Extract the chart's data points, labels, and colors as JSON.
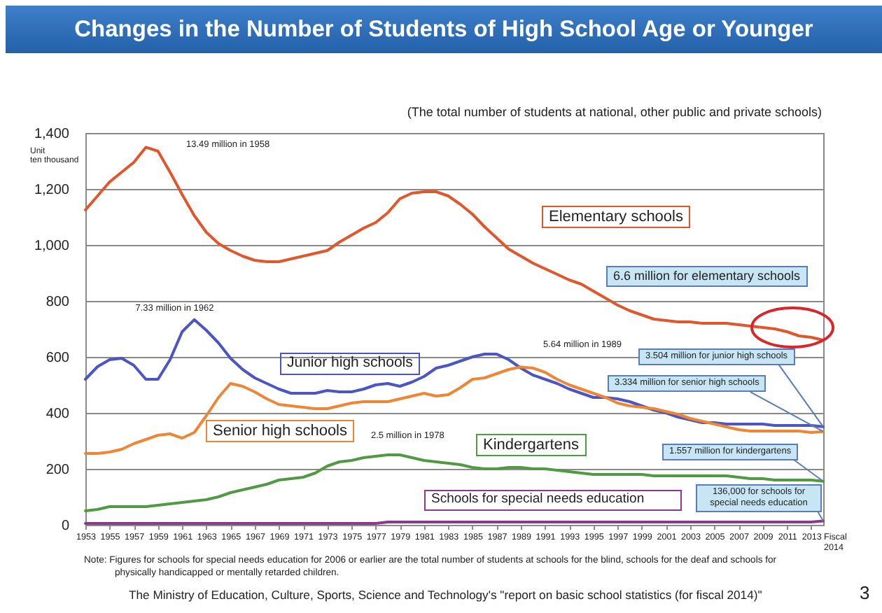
{
  "chart_data": {
    "type": "line",
    "title": "Changes in the Number of Students of High School Age or Younger",
    "subtitle": "(The total number of students at national, other public and private schools)",
    "xlabel": "Fiscal 2014",
    "ylabel": "Unit ten thousand",
    "x": [
      1953,
      1954,
      1955,
      1956,
      1957,
      1958,
      1959,
      1960,
      1961,
      1962,
      1963,
      1964,
      1965,
      1966,
      1967,
      1968,
      1969,
      1970,
      1971,
      1972,
      1973,
      1974,
      1975,
      1976,
      1977,
      1978,
      1979,
      1980,
      1981,
      1982,
      1983,
      1984,
      1985,
      1986,
      1987,
      1988,
      1989,
      1990,
      1991,
      1992,
      1993,
      1994,
      1995,
      1996,
      1997,
      1998,
      1999,
      2000,
      2001,
      2002,
      2003,
      2004,
      2005,
      2006,
      2007,
      2008,
      2009,
      2010,
      2011,
      2012,
      2013,
      2014
    ],
    "xlim": [
      1953,
      2014
    ],
    "xticks": [
      1953,
      1955,
      1957,
      1959,
      1961,
      1963,
      1965,
      1967,
      1969,
      1971,
      1973,
      1975,
      1977,
      1979,
      1981,
      1983,
      1985,
      1987,
      1989,
      1991,
      1993,
      1995,
      1997,
      1999,
      2001,
      2003,
      2005,
      2007,
      2009,
      2011,
      2013
    ],
    "ylim": [
      0,
      1400
    ],
    "yticks": [
      0,
      200,
      400,
      600,
      800,
      {
        "value": 1000,
        "label": "1,000"
      },
      {
        "value": 1200,
        "label": "1,200"
      },
      {
        "value": 1400,
        "label": "1,400"
      }
    ],
    "grid": "y",
    "series": [
      {
        "name": "Elementary schools",
        "color": "#e2562c",
        "values": [
          1125,
          1175,
          1225,
          1260,
          1295,
          1349,
          1335,
          1260,
          1180,
          1105,
          1045,
          1005,
          980,
          960,
          945,
          940,
          940,
          950,
          960,
          970,
          980,
          1010,
          1035,
          1060,
          1080,
          1115,
          1165,
          1185,
          1190,
          1190,
          1175,
          1145,
          1110,
          1065,
          1025,
          985,
          960,
          935,
          915,
          895,
          875,
          860,
          835,
          810,
          785,
          765,
          750,
          735,
          730,
          725,
          725,
          720,
          720,
          720,
          715,
          710,
          705,
          700,
          690,
          675,
          670,
          660
        ]
      },
      {
        "name": "Junior high schools",
        "color": "#4b55c4",
        "values": [
          520,
          565,
          590,
          595,
          570,
          520,
          520,
          590,
          690,
          733,
          695,
          650,
          595,
          555,
          525,
          505,
          485,
          470,
          470,
          470,
          480,
          475,
          475,
          485,
          500,
          505,
          495,
          510,
          530,
          560,
          570,
          585,
          600,
          610,
          610,
          590,
          560,
          535,
          520,
          505,
          485,
          470,
          455,
          455,
          450,
          440,
          425,
          410,
          400,
          385,
          375,
          365,
          365,
          360,
          360,
          360,
          360,
          355,
          355,
          355,
          355,
          350.4
        ]
      },
      {
        "name": "Senior high schools",
        "color": "#ef8635",
        "values": [
          255,
          255,
          260,
          270,
          290,
          305,
          320,
          325,
          310,
          330,
          390,
          455,
          505,
          495,
          475,
          450,
          430,
          425,
          420,
          415,
          415,
          425,
          435,
          440,
          440,
          440,
          450,
          460,
          470,
          460,
          465,
          490,
          520,
          525,
          540,
          555,
          564,
          560,
          545,
          520,
          500,
          485,
          470,
          455,
          435,
          425,
          420,
          415,
          405,
          395,
          380,
          370,
          360,
          350,
          340,
          335,
          335,
          335,
          335,
          335,
          330,
          333.4
        ]
      },
      {
        "name": "Kindergartens",
        "color": "#4f9a42",
        "values": [
          50,
          55,
          65,
          65,
          65,
          65,
          70,
          75,
          80,
          85,
          90,
          100,
          115,
          125,
          135,
          145,
          160,
          165,
          170,
          185,
          210,
          225,
          230,
          240,
          245,
          250,
          250,
          240,
          230,
          225,
          220,
          215,
          205,
          200,
          200,
          205,
          205,
          200,
          200,
          195,
          190,
          185,
          180,
          180,
          180,
          180,
          180,
          175,
          175,
          175,
          175,
          175,
          175,
          175,
          170,
          165,
          165,
          160,
          160,
          160,
          160,
          155.7
        ]
      },
      {
        "name": "Schools for special needs education",
        "color": "#8b3a8b",
        "values": [
          5,
          5,
          5,
          5,
          5,
          5,
          5,
          5,
          5,
          5,
          5,
          5,
          5,
          5,
          5,
          5,
          5,
          5,
          5,
          5,
          5,
          5,
          5,
          5,
          5,
          10,
          10,
          10,
          10,
          10,
          10,
          10,
          10,
          10,
          10,
          10,
          10,
          10,
          10,
          10,
          10,
          10,
          10,
          10,
          10,
          10,
          10,
          10,
          10,
          10,
          10,
          10,
          10,
          10,
          10,
          10,
          10,
          10,
          10,
          10,
          10,
          13.6
        ]
      }
    ],
    "annotations": [
      "13.49 million in 1958",
      {
        "text": "7.33 million in 1962",
        "x": 1962,
        "y": 733
      },
      "5.64 million in 1989",
      {
        "text": "2.5 million in 1978",
        "x": 1978,
        "y": 250
      },
      "6.6 million for elementary schools",
      {
        "text": "3.504 million for junior high schools",
        "x": 2014,
        "y": 350.4
      },
      {
        "text": "3.334 million for senior high schools",
        "x": 2014,
        "y": 333.4
      },
      {
        "text": "1.557 million for kindergartens",
        "x": 2014,
        "y": 155.7
      },
      {
        "text": "136,000 for schools for special needs education",
        "x": 2014,
        "y": 13.6
      },
      "Note: Figures for schools for special needs education for 2006 or earlier are the total number of students at schools for the blind, schools for the deaf and schools for physically handicapped or mentally retarded children.",
      "The Ministry of Education, Culture, Sports, Science and Technology's \"report on basic school statistics (for fiscal 2014)\"",
      "3"
    ]
  }
}
